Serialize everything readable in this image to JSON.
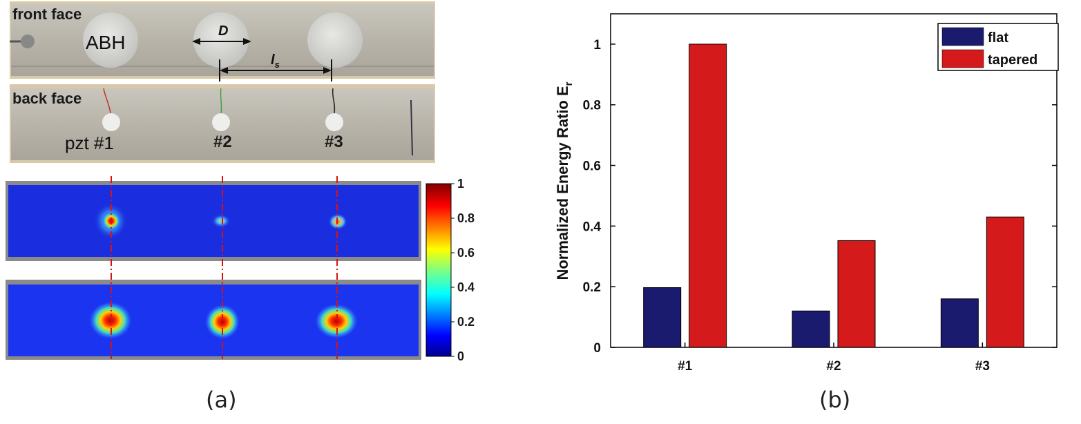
{
  "figure": {
    "panel_a_label": "(a)",
    "panel_b_label": "(b)"
  },
  "photos": {
    "front_label": "front face",
    "abh_label": "ABH",
    "d_label": "D",
    "ls_label": "l",
    "ls_sub": "s",
    "back_label": "back face",
    "pzt_labels": [
      "pzt #1",
      "#2",
      "#3"
    ]
  },
  "colorbar": {
    "ticks": [
      "1",
      "0.8",
      "0.6",
      "0.4",
      "0.2",
      "0"
    ]
  },
  "chart_data": {
    "type": "bar",
    "categories": [
      "#1",
      "#2",
      "#3"
    ],
    "series": [
      {
        "name": "flat",
        "color": "#1a1a6e",
        "values": [
          0.197,
          0.12,
          0.16
        ]
      },
      {
        "name": "tapered",
        "color": "#d41a1a",
        "values": [
          1.0,
          0.352,
          0.43
        ]
      }
    ],
    "ylabel": "Normalized Energy Ratio E",
    "ylabel_sub": "r",
    "ylim": [
      0,
      1.1
    ],
    "yticks": [
      0,
      0.2,
      0.4,
      0.6,
      0.8,
      1
    ],
    "ytick_labels": [
      "0",
      "0.2",
      "0.4",
      "0.6",
      "0.8",
      "1"
    ],
    "legend_position": "top-right"
  }
}
